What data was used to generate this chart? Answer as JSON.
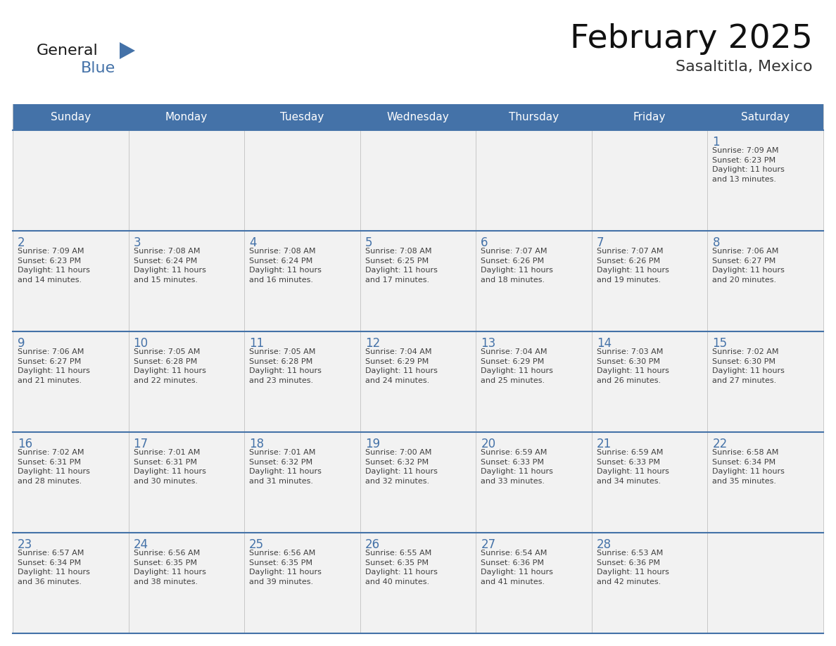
{
  "title": "February 2025",
  "subtitle": "Sasaltitla, Mexico",
  "header_color": "#4472a8",
  "header_text_color": "#ffffff",
  "cell_bg_color": "#f2f2f2",
  "cell_border_color": "#4472a8",
  "day_number_color": "#4472a8",
  "cell_text_color": "#404040",
  "grid_line_color": "#c0c0c0",
  "days_of_week": [
    "Sunday",
    "Monday",
    "Tuesday",
    "Wednesday",
    "Thursday",
    "Friday",
    "Saturday"
  ],
  "weeks": [
    [
      {
        "day": null,
        "info": null
      },
      {
        "day": null,
        "info": null
      },
      {
        "day": null,
        "info": null
      },
      {
        "day": null,
        "info": null
      },
      {
        "day": null,
        "info": null
      },
      {
        "day": null,
        "info": null
      },
      {
        "day": "1",
        "info": "Sunrise: 7:09 AM\nSunset: 6:23 PM\nDaylight: 11 hours\nand 13 minutes."
      }
    ],
    [
      {
        "day": "2",
        "info": "Sunrise: 7:09 AM\nSunset: 6:23 PM\nDaylight: 11 hours\nand 14 minutes."
      },
      {
        "day": "3",
        "info": "Sunrise: 7:08 AM\nSunset: 6:24 PM\nDaylight: 11 hours\nand 15 minutes."
      },
      {
        "day": "4",
        "info": "Sunrise: 7:08 AM\nSunset: 6:24 PM\nDaylight: 11 hours\nand 16 minutes."
      },
      {
        "day": "5",
        "info": "Sunrise: 7:08 AM\nSunset: 6:25 PM\nDaylight: 11 hours\nand 17 minutes."
      },
      {
        "day": "6",
        "info": "Sunrise: 7:07 AM\nSunset: 6:26 PM\nDaylight: 11 hours\nand 18 minutes."
      },
      {
        "day": "7",
        "info": "Sunrise: 7:07 AM\nSunset: 6:26 PM\nDaylight: 11 hours\nand 19 minutes."
      },
      {
        "day": "8",
        "info": "Sunrise: 7:06 AM\nSunset: 6:27 PM\nDaylight: 11 hours\nand 20 minutes."
      }
    ],
    [
      {
        "day": "9",
        "info": "Sunrise: 7:06 AM\nSunset: 6:27 PM\nDaylight: 11 hours\nand 21 minutes."
      },
      {
        "day": "10",
        "info": "Sunrise: 7:05 AM\nSunset: 6:28 PM\nDaylight: 11 hours\nand 22 minutes."
      },
      {
        "day": "11",
        "info": "Sunrise: 7:05 AM\nSunset: 6:28 PM\nDaylight: 11 hours\nand 23 minutes."
      },
      {
        "day": "12",
        "info": "Sunrise: 7:04 AM\nSunset: 6:29 PM\nDaylight: 11 hours\nand 24 minutes."
      },
      {
        "day": "13",
        "info": "Sunrise: 7:04 AM\nSunset: 6:29 PM\nDaylight: 11 hours\nand 25 minutes."
      },
      {
        "day": "14",
        "info": "Sunrise: 7:03 AM\nSunset: 6:30 PM\nDaylight: 11 hours\nand 26 minutes."
      },
      {
        "day": "15",
        "info": "Sunrise: 7:02 AM\nSunset: 6:30 PM\nDaylight: 11 hours\nand 27 minutes."
      }
    ],
    [
      {
        "day": "16",
        "info": "Sunrise: 7:02 AM\nSunset: 6:31 PM\nDaylight: 11 hours\nand 28 minutes."
      },
      {
        "day": "17",
        "info": "Sunrise: 7:01 AM\nSunset: 6:31 PM\nDaylight: 11 hours\nand 30 minutes."
      },
      {
        "day": "18",
        "info": "Sunrise: 7:01 AM\nSunset: 6:32 PM\nDaylight: 11 hours\nand 31 minutes."
      },
      {
        "day": "19",
        "info": "Sunrise: 7:00 AM\nSunset: 6:32 PM\nDaylight: 11 hours\nand 32 minutes."
      },
      {
        "day": "20",
        "info": "Sunrise: 6:59 AM\nSunset: 6:33 PM\nDaylight: 11 hours\nand 33 minutes."
      },
      {
        "day": "21",
        "info": "Sunrise: 6:59 AM\nSunset: 6:33 PM\nDaylight: 11 hours\nand 34 minutes."
      },
      {
        "day": "22",
        "info": "Sunrise: 6:58 AM\nSunset: 6:34 PM\nDaylight: 11 hours\nand 35 minutes."
      }
    ],
    [
      {
        "day": "23",
        "info": "Sunrise: 6:57 AM\nSunset: 6:34 PM\nDaylight: 11 hours\nand 36 minutes."
      },
      {
        "day": "24",
        "info": "Sunrise: 6:56 AM\nSunset: 6:35 PM\nDaylight: 11 hours\nand 38 minutes."
      },
      {
        "day": "25",
        "info": "Sunrise: 6:56 AM\nSunset: 6:35 PM\nDaylight: 11 hours\nand 39 minutes."
      },
      {
        "day": "26",
        "info": "Sunrise: 6:55 AM\nSunset: 6:35 PM\nDaylight: 11 hours\nand 40 minutes."
      },
      {
        "day": "27",
        "info": "Sunrise: 6:54 AM\nSunset: 6:36 PM\nDaylight: 11 hours\nand 41 minutes."
      },
      {
        "day": "28",
        "info": "Sunrise: 6:53 AM\nSunset: 6:36 PM\nDaylight: 11 hours\nand 42 minutes."
      },
      {
        "day": null,
        "info": null
      }
    ]
  ],
  "logo_general_color": "#1a1a1a",
  "logo_blue_color": "#4472a8",
  "figsize": [
    11.88,
    9.18
  ],
  "dpi": 100
}
